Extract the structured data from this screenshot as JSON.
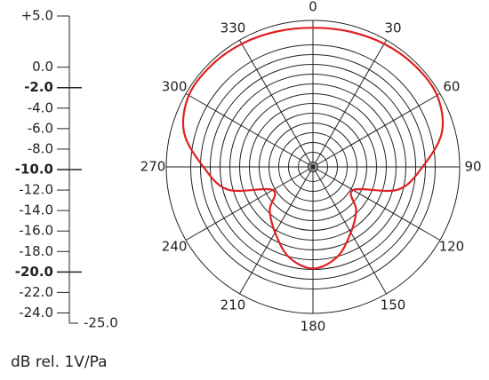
{
  "chart_data": {
    "type": "polar",
    "y_label": "dB rel. 1V/Pa",
    "ylim": [
      -25,
      5
    ],
    "yticks": [
      {
        "value": 5,
        "label": "+5.0"
      },
      {
        "value": 0,
        "label": "0.0"
      },
      {
        "value": -2,
        "label": "-2.0",
        "major": true
      },
      {
        "value": -4,
        "label": "-4.0"
      },
      {
        "value": -6,
        "label": "-6.0"
      },
      {
        "value": -8,
        "label": "-8.0"
      },
      {
        "value": -10,
        "label": "-10.0",
        "major": true
      },
      {
        "value": -12,
        "label": "-12.0"
      },
      {
        "value": -14,
        "label": "-14.0"
      },
      {
        "value": -16,
        "label": "-16.0"
      },
      {
        "value": -18,
        "label": "-18.0"
      },
      {
        "value": -20,
        "label": "-20.0",
        "major": true
      },
      {
        "value": -22,
        "label": "-22.0"
      },
      {
        "value": -24,
        "label": "-24.0"
      },
      {
        "value": -25,
        "label": "-25.0"
      }
    ],
    "xticks": [
      0,
      30,
      60,
      90,
      120,
      150,
      180,
      210,
      240,
      270,
      300,
      330
    ],
    "x": [
      0,
      15,
      30,
      45,
      60,
      75,
      90,
      105,
      120,
      135,
      150,
      165,
      180,
      195,
      210,
      225,
      240,
      255,
      270,
      285,
      300,
      315,
      330,
      345
    ],
    "series": [
      {
        "color": "#e02020",
        "values": [
          3.5,
          3.7,
          4.1,
          4.4,
          4.3,
          2.3,
          -2.6,
          -7,
          -15.5,
          -12.5,
          -9.5,
          -5.9,
          -4.2,
          -5.9,
          -9.5,
          -12.5,
          -15.5,
          -7,
          -2.6,
          2.3,
          4.3,
          4.4,
          4.1,
          3.7
        ]
      }
    ]
  }
}
